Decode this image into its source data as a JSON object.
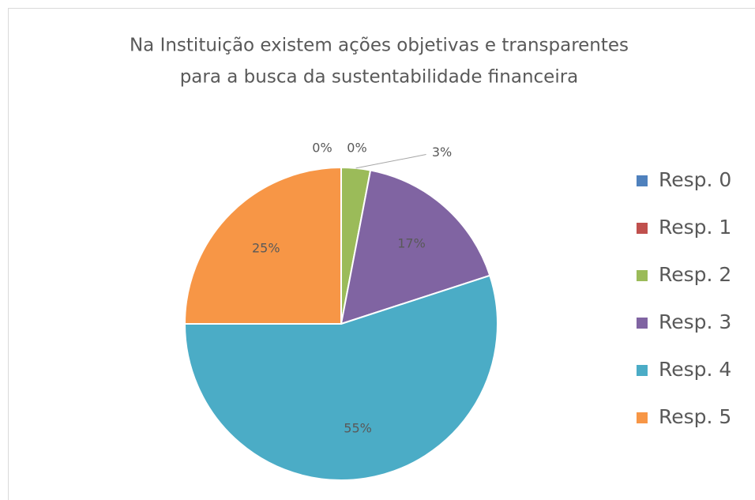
{
  "chart_data": {
    "type": "pie",
    "title": [
      "Na Instituição existem ações objetivas e transparentes",
      "para a busca da sustentabilidade financeira"
    ],
    "categories": [
      "Resp. 0",
      "Resp. 1",
      "Resp. 2",
      "Resp. 3",
      "Resp. 4",
      "Resp. 5"
    ],
    "values": [
      0,
      0,
      3,
      17,
      55,
      25
    ],
    "value_labels": [
      "0%",
      "0%",
      "3%",
      "17%",
      "55%",
      "25%"
    ],
    "colors": [
      "#4f81bd",
      "#c0504d",
      "#9bbb59",
      "#8064a2",
      "#4bacc6",
      "#f79646"
    ],
    "legend": "right"
  }
}
